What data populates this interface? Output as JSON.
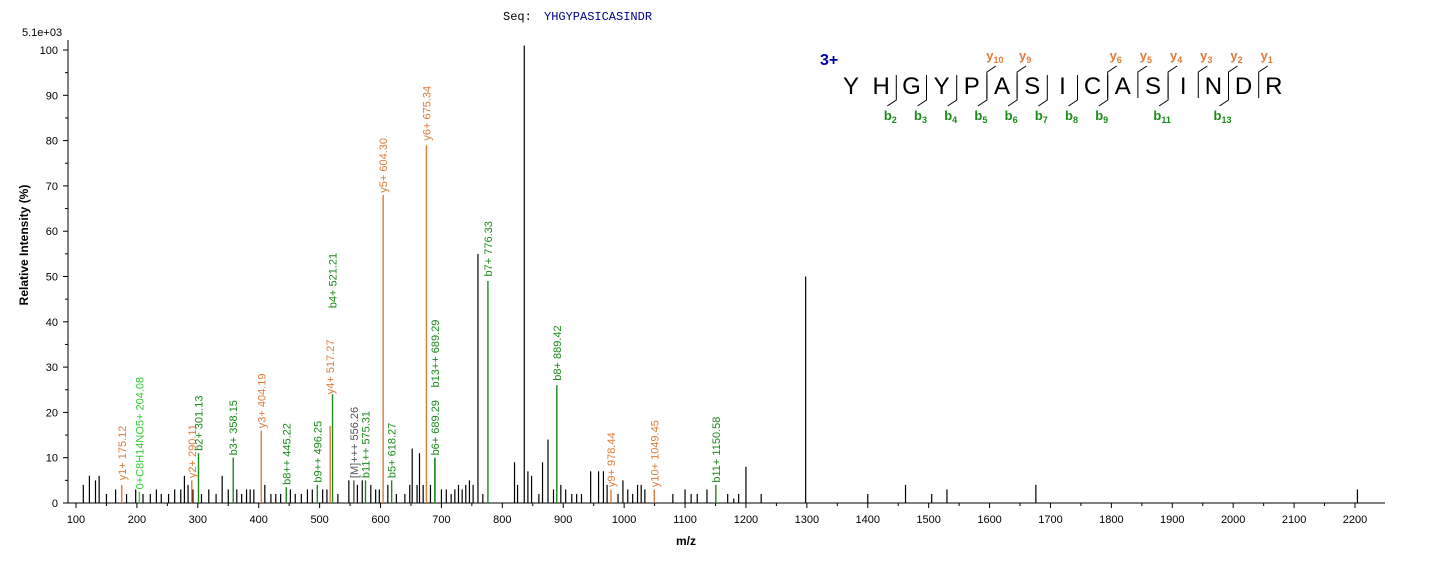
{
  "header": {
    "seq_label": "Seq:",
    "seq_value": "YHGYPASICASINDR",
    "scale_label": "5.1e+03"
  },
  "colors": {
    "y_ion": "#e07b39",
    "b_ion": "#1a8a1a",
    "precursor_light": "#33cc33",
    "other": "#555555",
    "charge": "#0000aa",
    "seq": "#00008b"
  },
  "fragment_map": {
    "charge": "3+",
    "residues": [
      "Y",
      "H",
      "G",
      "Y",
      "P",
      "A",
      "S",
      "I",
      "C",
      "A",
      "S",
      "I",
      "N",
      "D",
      "R"
    ],
    "b_ions": [
      {
        "label": "b",
        "sub": "2",
        "after": 2
      },
      {
        "label": "b",
        "sub": "3",
        "after": 3
      },
      {
        "label": "b",
        "sub": "4",
        "after": 4
      },
      {
        "label": "b",
        "sub": "5",
        "after": 5
      },
      {
        "label": "b",
        "sub": "6",
        "after": 6
      },
      {
        "label": "b",
        "sub": "7",
        "after": 7
      },
      {
        "label": "b",
        "sub": "8",
        "after": 8
      },
      {
        "label": "b",
        "sub": "9",
        "after": 9
      },
      {
        "label": "b",
        "sub": "11",
        "after": 11
      },
      {
        "label": "b",
        "sub": "13",
        "after": 13
      }
    ],
    "y_ions": [
      {
        "label": "y",
        "sub": "10",
        "after": 5
      },
      {
        "label": "y",
        "sub": "9",
        "after": 6
      },
      {
        "label": "y",
        "sub": "6",
        "after": 9
      },
      {
        "label": "y",
        "sub": "5",
        "after": 10
      },
      {
        "label": "y",
        "sub": "4",
        "after": 11
      },
      {
        "label": "y",
        "sub": "3",
        "after": 12
      },
      {
        "label": "y",
        "sub": "2",
        "after": 13
      },
      {
        "label": "y",
        "sub": "1",
        "after": 14
      }
    ]
  },
  "chart_data": {
    "type": "bar",
    "title": "",
    "xlabel": "m/z",
    "ylabel": "Relative   Intensity (%)",
    "xlim": [
      100,
      2240
    ],
    "ylim": [
      0,
      101
    ],
    "x_ticks": [
      100,
      200,
      300,
      400,
      500,
      600,
      700,
      800,
      900,
      1000,
      1100,
      1200,
      1300,
      1400,
      1500,
      1600,
      1700,
      1800,
      1900,
      2000,
      2100,
      2200
    ],
    "y_ticks": [
      0,
      10,
      20,
      30,
      40,
      50,
      60,
      70,
      80,
      90,
      100
    ],
    "grid": false,
    "labeled_peaks": [
      {
        "x": 175.12,
        "y": 4,
        "label": "y1+ 175.12",
        "kind": "y",
        "ly": 5
      },
      {
        "x": 204.08,
        "y": 2.5,
        "label": "0+C8H14NO5+ 204.08",
        "kind": "light",
        "ly": 3
      },
      {
        "x": 290.11,
        "y": 5,
        "label": "y2+ 290.11",
        "kind": "y",
        "ly": 5.5
      },
      {
        "x": 301.13,
        "y": 11,
        "label": "b2+ 301.13",
        "kind": "b",
        "ly": 11.5
      },
      {
        "x": 358.15,
        "y": 10,
        "label": "b3+ 358.15",
        "kind": "b",
        "ly": 10.5
      },
      {
        "x": 404.19,
        "y": 16,
        "label": "y3+ 404.19",
        "kind": "y",
        "ly": 16.5
      },
      {
        "x": 445.22,
        "y": 3.5,
        "label": "b8++ 445.22",
        "kind": "b",
        "ly": 4
      },
      {
        "x": 496.25,
        "y": 4,
        "label": "b9++ 496.25",
        "kind": "b",
        "ly": 4.5
      },
      {
        "x": 517.27,
        "y": 17,
        "label": "y4+ 517.27",
        "kind": "y",
        "ly": 24
      },
      {
        "x": 521.21,
        "y": 24,
        "label": "b4+ 521.21",
        "kind": "b",
        "ly": 43
      },
      {
        "x": 556.26,
        "y": 5,
        "label": "[M]+++ 556.26",
        "kind": "other",
        "ly": 5.5
      },
      {
        "x": 575.31,
        "y": 5,
        "label": "b11++ 575.31",
        "kind": "b",
        "ly": 5.5
      },
      {
        "x": 604.3,
        "y": 68,
        "label": "y5+ 604.30",
        "kind": "y",
        "ly": 68.5
      },
      {
        "x": 618.27,
        "y": 5,
        "label": "b5+ 618.27",
        "kind": "b",
        "ly": 5.5
      },
      {
        "x": 675.34,
        "y": 79,
        "label": "y6+ 675.34",
        "kind": "y",
        "ly": 80
      },
      {
        "x": 689.29,
        "y": 10,
        "label": "b6+ 689.29",
        "kind": "b",
        "ly": 10.5
      },
      {
        "x": 689.29,
        "y": 10,
        "label": "b13++ 689.29",
        "kind": "b",
        "ly": 25.5
      },
      {
        "x": 776.33,
        "y": 49,
        "label": "b7+ 776.33",
        "kind": "b",
        "ly": 50
      },
      {
        "x": 889.42,
        "y": 26,
        "label": "b8+ 889.42",
        "kind": "b",
        "ly": 27
      },
      {
        "x": 978.44,
        "y": 3,
        "label": "y9+ 978.44",
        "kind": "y",
        "ly": 3.5
      },
      {
        "x": 1049.45,
        "y": 3,
        "label": "y10+ 1049.45",
        "kind": "y",
        "ly": 3.5
      },
      {
        "x": 1150.58,
        "y": 4,
        "label": "b11+ 1150.58",
        "kind": "b",
        "ly": 4.5
      }
    ],
    "unlabeled_peaks": [
      [
        112,
        4
      ],
      [
        122,
        6
      ],
      [
        132,
        5
      ],
      [
        138,
        6
      ],
      [
        150,
        2
      ],
      [
        165,
        3
      ],
      [
        183,
        2
      ],
      [
        198,
        3
      ],
      [
        210,
        2
      ],
      [
        222,
        2
      ],
      [
        232,
        3
      ],
      [
        240,
        2
      ],
      [
        252,
        2
      ],
      [
        262,
        3
      ],
      [
        272,
        3
      ],
      [
        278,
        6
      ],
      [
        284,
        4
      ],
      [
        292,
        3
      ],
      [
        306,
        2
      ],
      [
        318,
        3
      ],
      [
        330,
        2
      ],
      [
        340,
        6
      ],
      [
        350,
        3
      ],
      [
        364,
        3
      ],
      [
        372,
        2
      ],
      [
        380,
        3
      ],
      [
        386,
        3
      ],
      [
        392,
        3
      ],
      [
        410,
        4
      ],
      [
        420,
        2
      ],
      [
        428,
        2
      ],
      [
        436,
        2
      ],
      [
        452,
        3
      ],
      [
        460,
        2
      ],
      [
        470,
        2
      ],
      [
        480,
        3
      ],
      [
        488,
        3
      ],
      [
        505,
        3
      ],
      [
        512,
        3
      ],
      [
        530,
        2
      ],
      [
        548,
        5
      ],
      [
        562,
        4
      ],
      [
        570,
        5
      ],
      [
        584,
        4
      ],
      [
        592,
        3
      ],
      [
        598,
        3
      ],
      [
        612,
        4
      ],
      [
        626,
        2
      ],
      [
        640,
        2
      ],
      [
        648,
        4
      ],
      [
        652,
        12
      ],
      [
        660,
        4
      ],
      [
        664,
        11
      ],
      [
        670,
        4
      ],
      [
        682,
        4
      ],
      [
        700,
        3
      ],
      [
        708,
        3
      ],
      [
        716,
        2
      ],
      [
        722,
        3
      ],
      [
        728,
        4
      ],
      [
        734,
        3
      ],
      [
        740,
        4
      ],
      [
        746,
        5
      ],
      [
        752,
        4
      ],
      [
        760,
        55
      ],
      [
        768,
        2
      ],
      [
        820,
        9
      ],
      [
        825,
        4
      ],
      [
        836,
        101
      ],
      [
        842,
        7
      ],
      [
        848,
        6
      ],
      [
        860,
        2
      ],
      [
        866,
        9
      ],
      [
        875,
        14
      ],
      [
        884,
        3
      ],
      [
        896,
        4
      ],
      [
        904,
        3
      ],
      [
        914,
        2
      ],
      [
        922,
        2
      ],
      [
        930,
        2
      ],
      [
        945,
        7
      ],
      [
        958,
        7
      ],
      [
        966,
        7
      ],
      [
        972,
        4
      ],
      [
        990,
        2
      ],
      [
        998,
        5
      ],
      [
        1006,
        3
      ],
      [
        1014,
        2
      ],
      [
        1022,
        4
      ],
      [
        1028,
        4
      ],
      [
        1034,
        3
      ],
      [
        1080,
        2
      ],
      [
        1100,
        3
      ],
      [
        1110,
        2
      ],
      [
        1120,
        2
      ],
      [
        1136,
        3
      ],
      [
        1170,
        2
      ],
      [
        1180,
        1
      ],
      [
        1188,
        2
      ],
      [
        1200,
        8
      ],
      [
        1225,
        2
      ],
      [
        1298,
        50
      ],
      [
        1400,
        2
      ],
      [
        1462,
        4
      ],
      [
        1505,
        2
      ],
      [
        1530,
        3
      ],
      [
        1676,
        4
      ],
      [
        2204,
        3
      ]
    ]
  }
}
